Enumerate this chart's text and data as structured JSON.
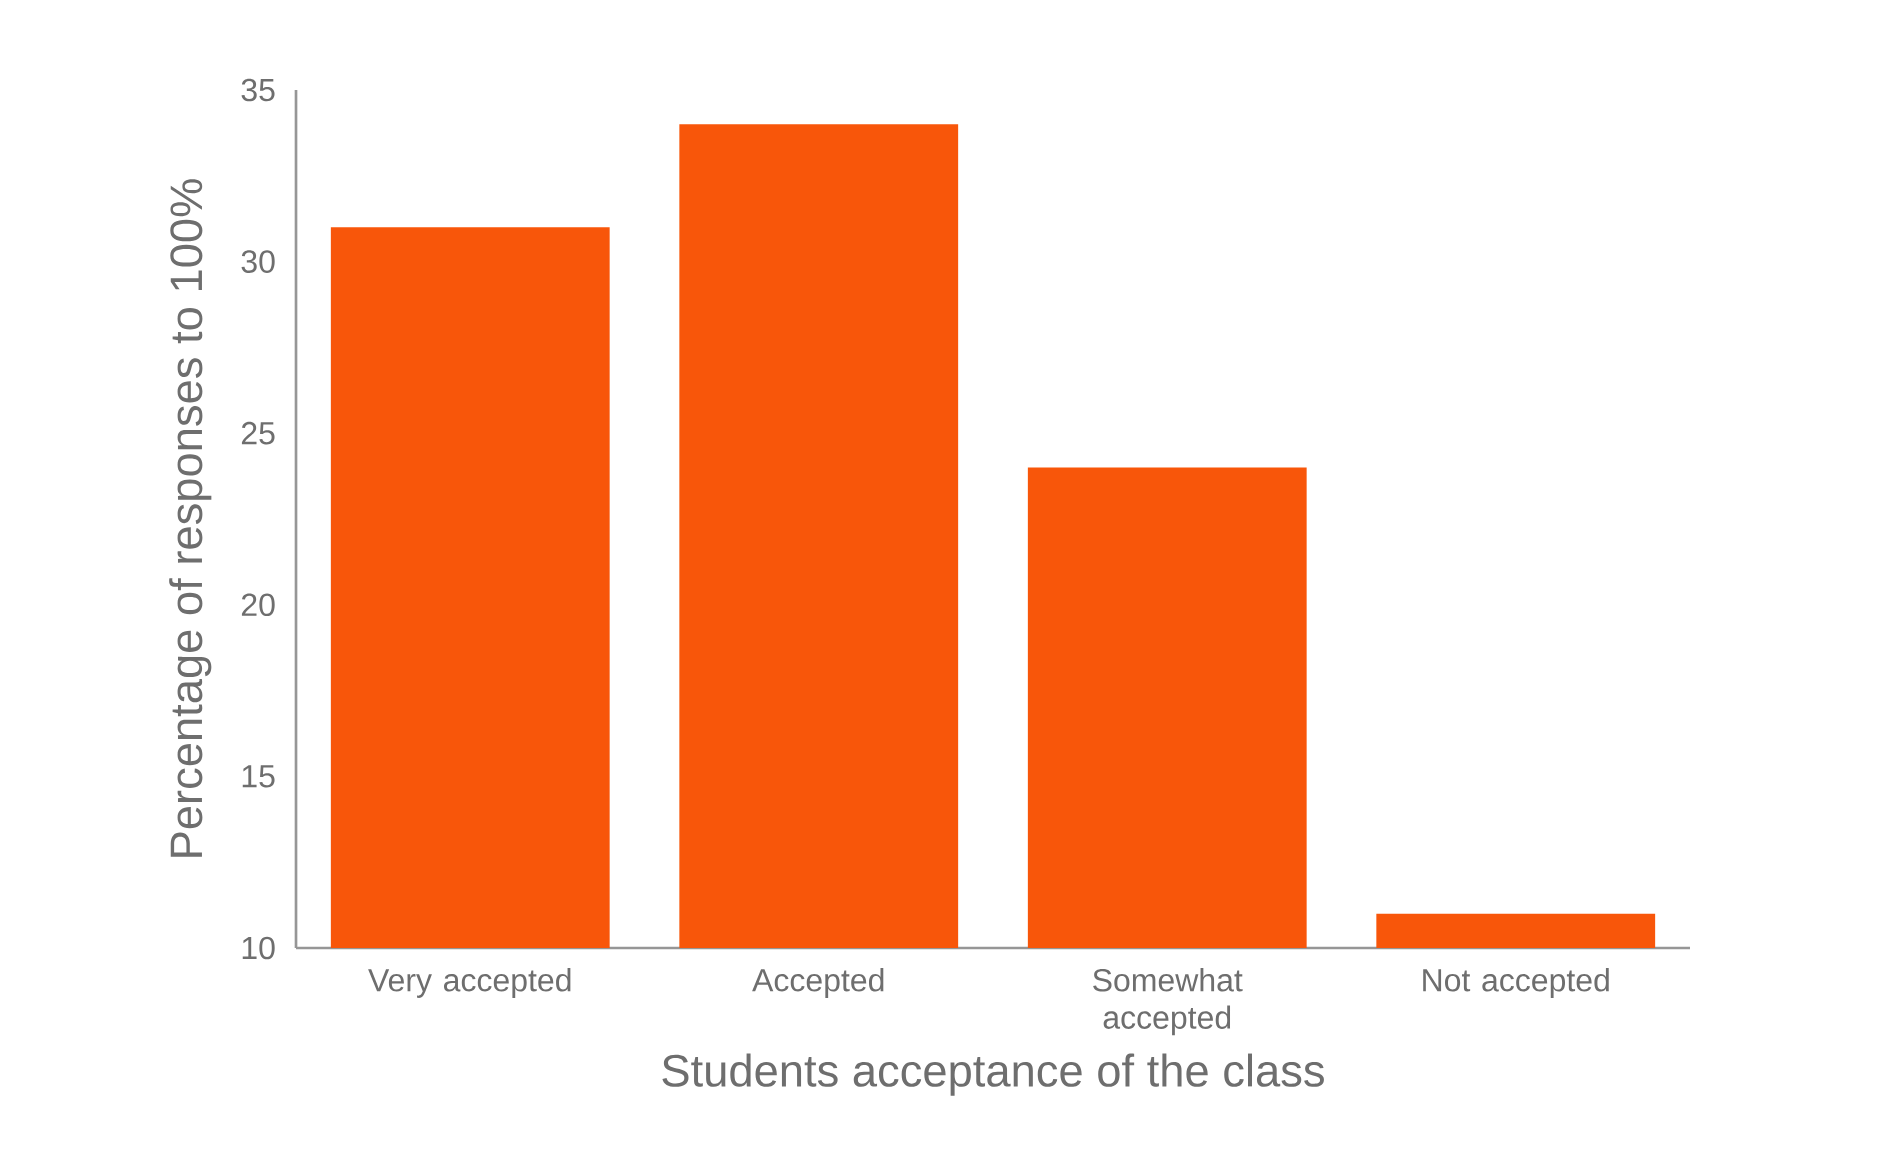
{
  "chart_data": {
    "type": "bar",
    "xlabel": "Students acceptance of the class",
    "ylabel": "Percentage of responses to 100%",
    "categories": [
      "Very accepted",
      "Accepted",
      "Somewhat accepted",
      "Not accepted"
    ],
    "values": [
      31,
      34,
      24,
      11
    ],
    "color": "#f8560a",
    "ylim": [
      10,
      35
    ],
    "yticks": [
      10,
      15,
      20,
      25,
      30,
      35
    ]
  }
}
